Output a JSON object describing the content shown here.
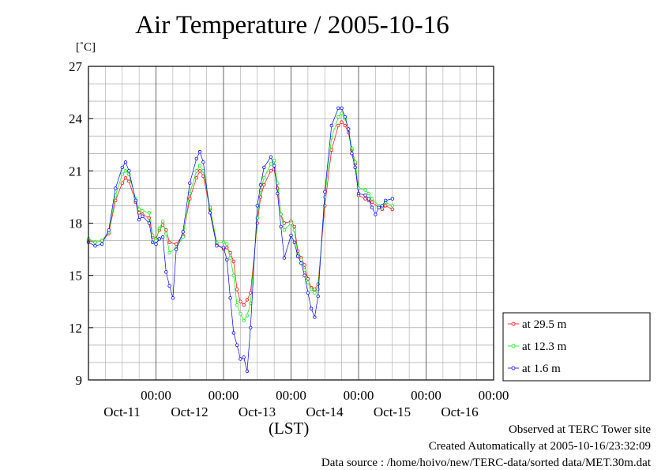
{
  "chart_data": {
    "type": "line",
    "title": "Air Temperature / 2005-10-16",
    "ylabel": "[˚C]",
    "xlabel": "(LST)",
    "ylim": [
      9,
      27
    ],
    "yticks": [
      9,
      12,
      15,
      18,
      21,
      24,
      27
    ],
    "xlim": [
      0,
      6
    ],
    "x_ticks": [
      {
        "x": 1,
        "time": "00:00",
        "date": "Oct-11"
      },
      {
        "x": 2,
        "time": "00:00",
        "date": "Oct-12"
      },
      {
        "x": 3,
        "time": "00:00",
        "date": "Oct-13"
      },
      {
        "x": 4,
        "time": "00:00",
        "date": "Oct-14"
      },
      {
        "x": 5,
        "time": "00:00",
        "date": "Oct-15"
      },
      {
        "x": 6,
        "time": "00:00",
        "date": "Oct-16"
      }
    ],
    "grid": true,
    "legend_position": "right",
    "series": [
      {
        "name": "at 29.5 m",
        "color": "#ff0000",
        "points": [
          [
            0.0,
            17.0
          ],
          [
            0.1,
            16.9
          ],
          [
            0.2,
            17.0
          ],
          [
            0.3,
            17.4
          ],
          [
            0.4,
            19.3
          ],
          [
            0.5,
            20.3
          ],
          [
            0.55,
            20.6
          ],
          [
            0.6,
            20.4
          ],
          [
            0.7,
            19.2
          ],
          [
            0.75,
            18.6
          ],
          [
            0.8,
            18.5
          ],
          [
            0.9,
            18.3
          ],
          [
            0.95,
            17.2
          ],
          [
            1.0,
            17.1
          ],
          [
            1.05,
            17.6
          ],
          [
            1.1,
            17.9
          ],
          [
            1.15,
            17.6
          ],
          [
            1.2,
            16.9
          ],
          [
            1.3,
            16.8
          ],
          [
            1.4,
            17.3
          ],
          [
            1.5,
            19.4
          ],
          [
            1.6,
            20.6
          ],
          [
            1.65,
            21.0
          ],
          [
            1.7,
            20.7
          ],
          [
            1.8,
            18.8
          ],
          [
            1.9,
            16.8
          ],
          [
            2.0,
            16.5
          ],
          [
            2.05,
            16.6
          ],
          [
            2.1,
            16.3
          ],
          [
            2.15,
            15.8
          ],
          [
            2.2,
            14.2
          ],
          [
            2.25,
            13.5
          ],
          [
            2.3,
            13.3
          ],
          [
            2.35,
            13.6
          ],
          [
            2.4,
            14.0
          ],
          [
            2.5,
            18.0
          ],
          [
            2.55,
            19.5
          ],
          [
            2.6,
            20.2
          ],
          [
            2.7,
            21.0
          ],
          [
            2.75,
            21.1
          ],
          [
            2.8,
            20.0
          ],
          [
            2.85,
            18.5
          ],
          [
            2.9,
            18.0
          ],
          [
            3.0,
            18.1
          ],
          [
            3.05,
            17.8
          ],
          [
            3.1,
            16.4
          ],
          [
            3.15,
            16.0
          ],
          [
            3.2,
            15.6
          ],
          [
            3.25,
            14.8
          ],
          [
            3.3,
            14.3
          ],
          [
            3.35,
            14.2
          ],
          [
            3.4,
            14.5
          ],
          [
            3.5,
            19.0
          ],
          [
            3.6,
            22.2
          ],
          [
            3.7,
            23.6
          ],
          [
            3.75,
            23.8
          ],
          [
            3.8,
            23.6
          ],
          [
            3.85,
            23.2
          ],
          [
            3.9,
            22.2
          ],
          [
            3.95,
            21.4
          ],
          [
            4.0,
            19.6
          ],
          [
            4.1,
            19.4
          ],
          [
            4.15,
            19.3
          ],
          [
            4.2,
            19.2
          ],
          [
            4.3,
            18.9
          ],
          [
            4.35,
            18.8
          ],
          [
            4.4,
            19.0
          ],
          [
            4.5,
            18.8
          ]
        ]
      },
      {
        "name": "at 12.3 m",
        "color": "#00ee00",
        "points": [
          [
            0.0,
            17.1
          ],
          [
            0.1,
            16.9
          ],
          [
            0.2,
            17.0
          ],
          [
            0.3,
            17.5
          ],
          [
            0.4,
            19.6
          ],
          [
            0.5,
            20.8
          ],
          [
            0.55,
            21.0
          ],
          [
            0.6,
            20.8
          ],
          [
            0.7,
            19.4
          ],
          [
            0.75,
            18.8
          ],
          [
            0.8,
            18.7
          ],
          [
            0.9,
            18.6
          ],
          [
            0.95,
            17.3
          ],
          [
            1.0,
            17.0
          ],
          [
            1.05,
            17.7
          ],
          [
            1.1,
            18.1
          ],
          [
            1.15,
            17.4
          ],
          [
            1.2,
            16.3
          ],
          [
            1.3,
            16.6
          ],
          [
            1.4,
            17.2
          ],
          [
            1.5,
            19.7
          ],
          [
            1.6,
            21.0
          ],
          [
            1.65,
            21.3
          ],
          [
            1.7,
            21.0
          ],
          [
            1.8,
            18.9
          ],
          [
            1.9,
            16.9
          ],
          [
            2.0,
            16.9
          ],
          [
            2.05,
            16.8
          ],
          [
            2.1,
            16.0
          ],
          [
            2.15,
            15.0
          ],
          [
            2.2,
            13.3
          ],
          [
            2.25,
            12.8
          ],
          [
            2.3,
            12.4
          ],
          [
            2.35,
            12.7
          ],
          [
            2.4,
            13.4
          ],
          [
            2.5,
            18.3
          ],
          [
            2.55,
            19.9
          ],
          [
            2.6,
            20.6
          ],
          [
            2.7,
            21.4
          ],
          [
            2.75,
            21.6
          ],
          [
            2.8,
            20.3
          ],
          [
            2.85,
            18.5
          ],
          [
            2.9,
            17.6
          ],
          [
            3.0,
            18.0
          ],
          [
            3.05,
            17.6
          ],
          [
            3.1,
            16.2
          ],
          [
            3.15,
            15.9
          ],
          [
            3.2,
            15.3
          ],
          [
            3.25,
            14.6
          ],
          [
            3.3,
            14.2
          ],
          [
            3.35,
            14.0
          ],
          [
            3.4,
            14.2
          ],
          [
            3.5,
            19.5
          ],
          [
            3.6,
            22.9
          ],
          [
            3.7,
            24.1
          ],
          [
            3.75,
            24.3
          ],
          [
            3.8,
            24.0
          ],
          [
            3.85,
            23.4
          ],
          [
            3.9,
            22.3
          ],
          [
            3.95,
            21.5
          ],
          [
            4.0,
            20.0
          ],
          [
            4.1,
            19.9
          ],
          [
            4.15,
            19.7
          ],
          [
            4.2,
            19.4
          ],
          [
            4.3,
            19.0
          ],
          [
            4.35,
            18.9
          ],
          [
            4.4,
            19.2
          ],
          [
            4.5,
            19.0
          ]
        ]
      },
      {
        "name": "at 1.6 m",
        "color": "#0000ff",
        "points": [
          [
            0.0,
            16.9
          ],
          [
            0.1,
            16.7
          ],
          [
            0.2,
            16.8
          ],
          [
            0.3,
            17.6
          ],
          [
            0.4,
            20.0
          ],
          [
            0.5,
            21.2
          ],
          [
            0.55,
            21.5
          ],
          [
            0.6,
            21.0
          ],
          [
            0.7,
            19.3
          ],
          [
            0.75,
            18.2
          ],
          [
            0.8,
            18.4
          ],
          [
            0.9,
            18.0
          ],
          [
            0.95,
            16.9
          ],
          [
            1.0,
            16.8
          ],
          [
            1.05,
            17.1
          ],
          [
            1.1,
            17.2
          ],
          [
            1.15,
            15.2
          ],
          [
            1.2,
            14.4
          ],
          [
            1.25,
            13.7
          ],
          [
            1.3,
            16.5
          ],
          [
            1.4,
            17.5
          ],
          [
            1.5,
            20.3
          ],
          [
            1.6,
            21.7
          ],
          [
            1.65,
            22.1
          ],
          [
            1.7,
            21.5
          ],
          [
            1.8,
            18.6
          ],
          [
            1.9,
            16.7
          ],
          [
            2.0,
            16.6
          ],
          [
            2.05,
            15.9
          ],
          [
            2.1,
            13.7
          ],
          [
            2.15,
            11.7
          ],
          [
            2.2,
            11.0
          ],
          [
            2.25,
            10.2
          ],
          [
            2.3,
            10.3
          ],
          [
            2.35,
            9.5
          ],
          [
            2.4,
            12.0
          ],
          [
            2.5,
            19.0
          ],
          [
            2.55,
            20.2
          ],
          [
            2.6,
            21.2
          ],
          [
            2.7,
            21.8
          ],
          [
            2.75,
            21.3
          ],
          [
            2.8,
            19.7
          ],
          [
            2.85,
            17.8
          ],
          [
            2.9,
            16.0
          ],
          [
            3.0,
            17.3
          ],
          [
            3.05,
            16.9
          ],
          [
            3.1,
            16.1
          ],
          [
            3.15,
            15.7
          ],
          [
            3.2,
            15.0
          ],
          [
            3.25,
            14.0
          ],
          [
            3.3,
            13.1
          ],
          [
            3.35,
            12.6
          ],
          [
            3.4,
            13.8
          ],
          [
            3.5,
            19.8
          ],
          [
            3.6,
            23.6
          ],
          [
            3.7,
            24.6
          ],
          [
            3.75,
            24.6
          ],
          [
            3.8,
            24.1
          ],
          [
            3.85,
            23.4
          ],
          [
            3.9,
            22.0
          ],
          [
            3.95,
            21.2
          ],
          [
            4.0,
            19.7
          ],
          [
            4.1,
            19.6
          ],
          [
            4.15,
            19.4
          ],
          [
            4.2,
            18.9
          ],
          [
            4.25,
            18.5
          ],
          [
            4.3,
            18.9
          ],
          [
            4.35,
            19.0
          ],
          [
            4.4,
            19.3
          ],
          [
            4.5,
            19.4
          ]
        ]
      }
    ]
  },
  "footer": {
    "line1": "Observed at TERC Tower site",
    "line2": "Created Automatically at 2005-10-16/23:32:09",
    "line3": "Data source : /home/hoivo/new/TERC-data/sorted  data/MET.30m.dat"
  }
}
